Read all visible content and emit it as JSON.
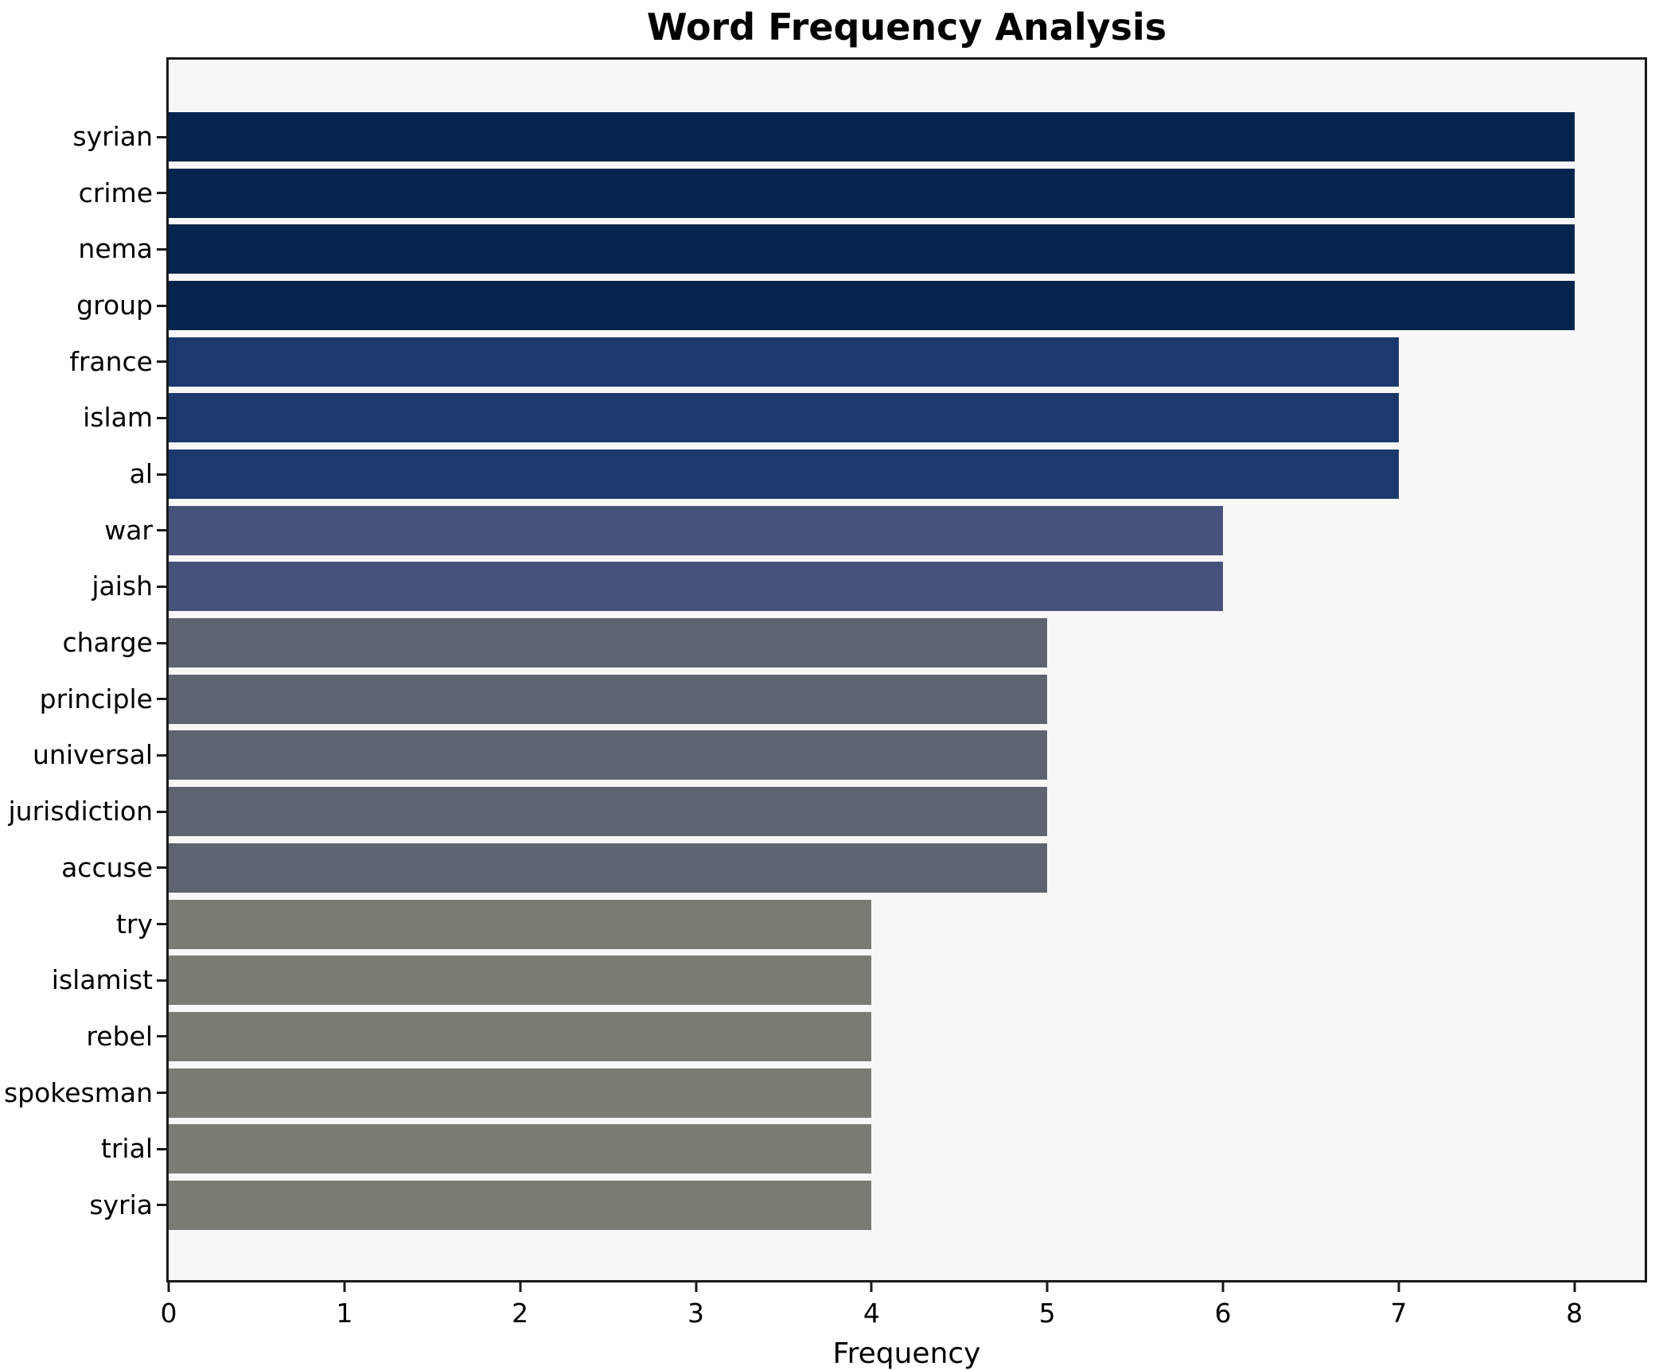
{
  "chart_data": {
    "type": "bar",
    "orientation": "horizontal",
    "title": "Word Frequency Analysis",
    "xlabel": "Frequency",
    "ylabel": "",
    "categories": [
      "syrian",
      "crime",
      "nema",
      "group",
      "france",
      "islam",
      "al",
      "war",
      "jaish",
      "charge",
      "principle",
      "universal",
      "jurisdiction",
      "accuse",
      "try",
      "islamist",
      "rebel",
      "spokesman",
      "trial",
      "syria"
    ],
    "values": [
      8,
      8,
      8,
      8,
      7,
      7,
      7,
      6,
      6,
      5,
      5,
      5,
      5,
      5,
      4,
      4,
      4,
      4,
      4,
      4
    ],
    "x_ticks": [
      0,
      1,
      2,
      3,
      4,
      5,
      6,
      7,
      8
    ],
    "xlim": [
      0,
      8.4
    ],
    "grid": false,
    "legend": "none",
    "colors_by_value": {
      "8": "#06254e",
      "7": "#1c396e",
      "6": "#47527b",
      "5": "#5e6370",
      "4": "#7a7b73"
    },
    "plot_background": "#f7f7f7",
    "figure_background": "#ffffff",
    "frame_color": "#1a1a1a"
  }
}
